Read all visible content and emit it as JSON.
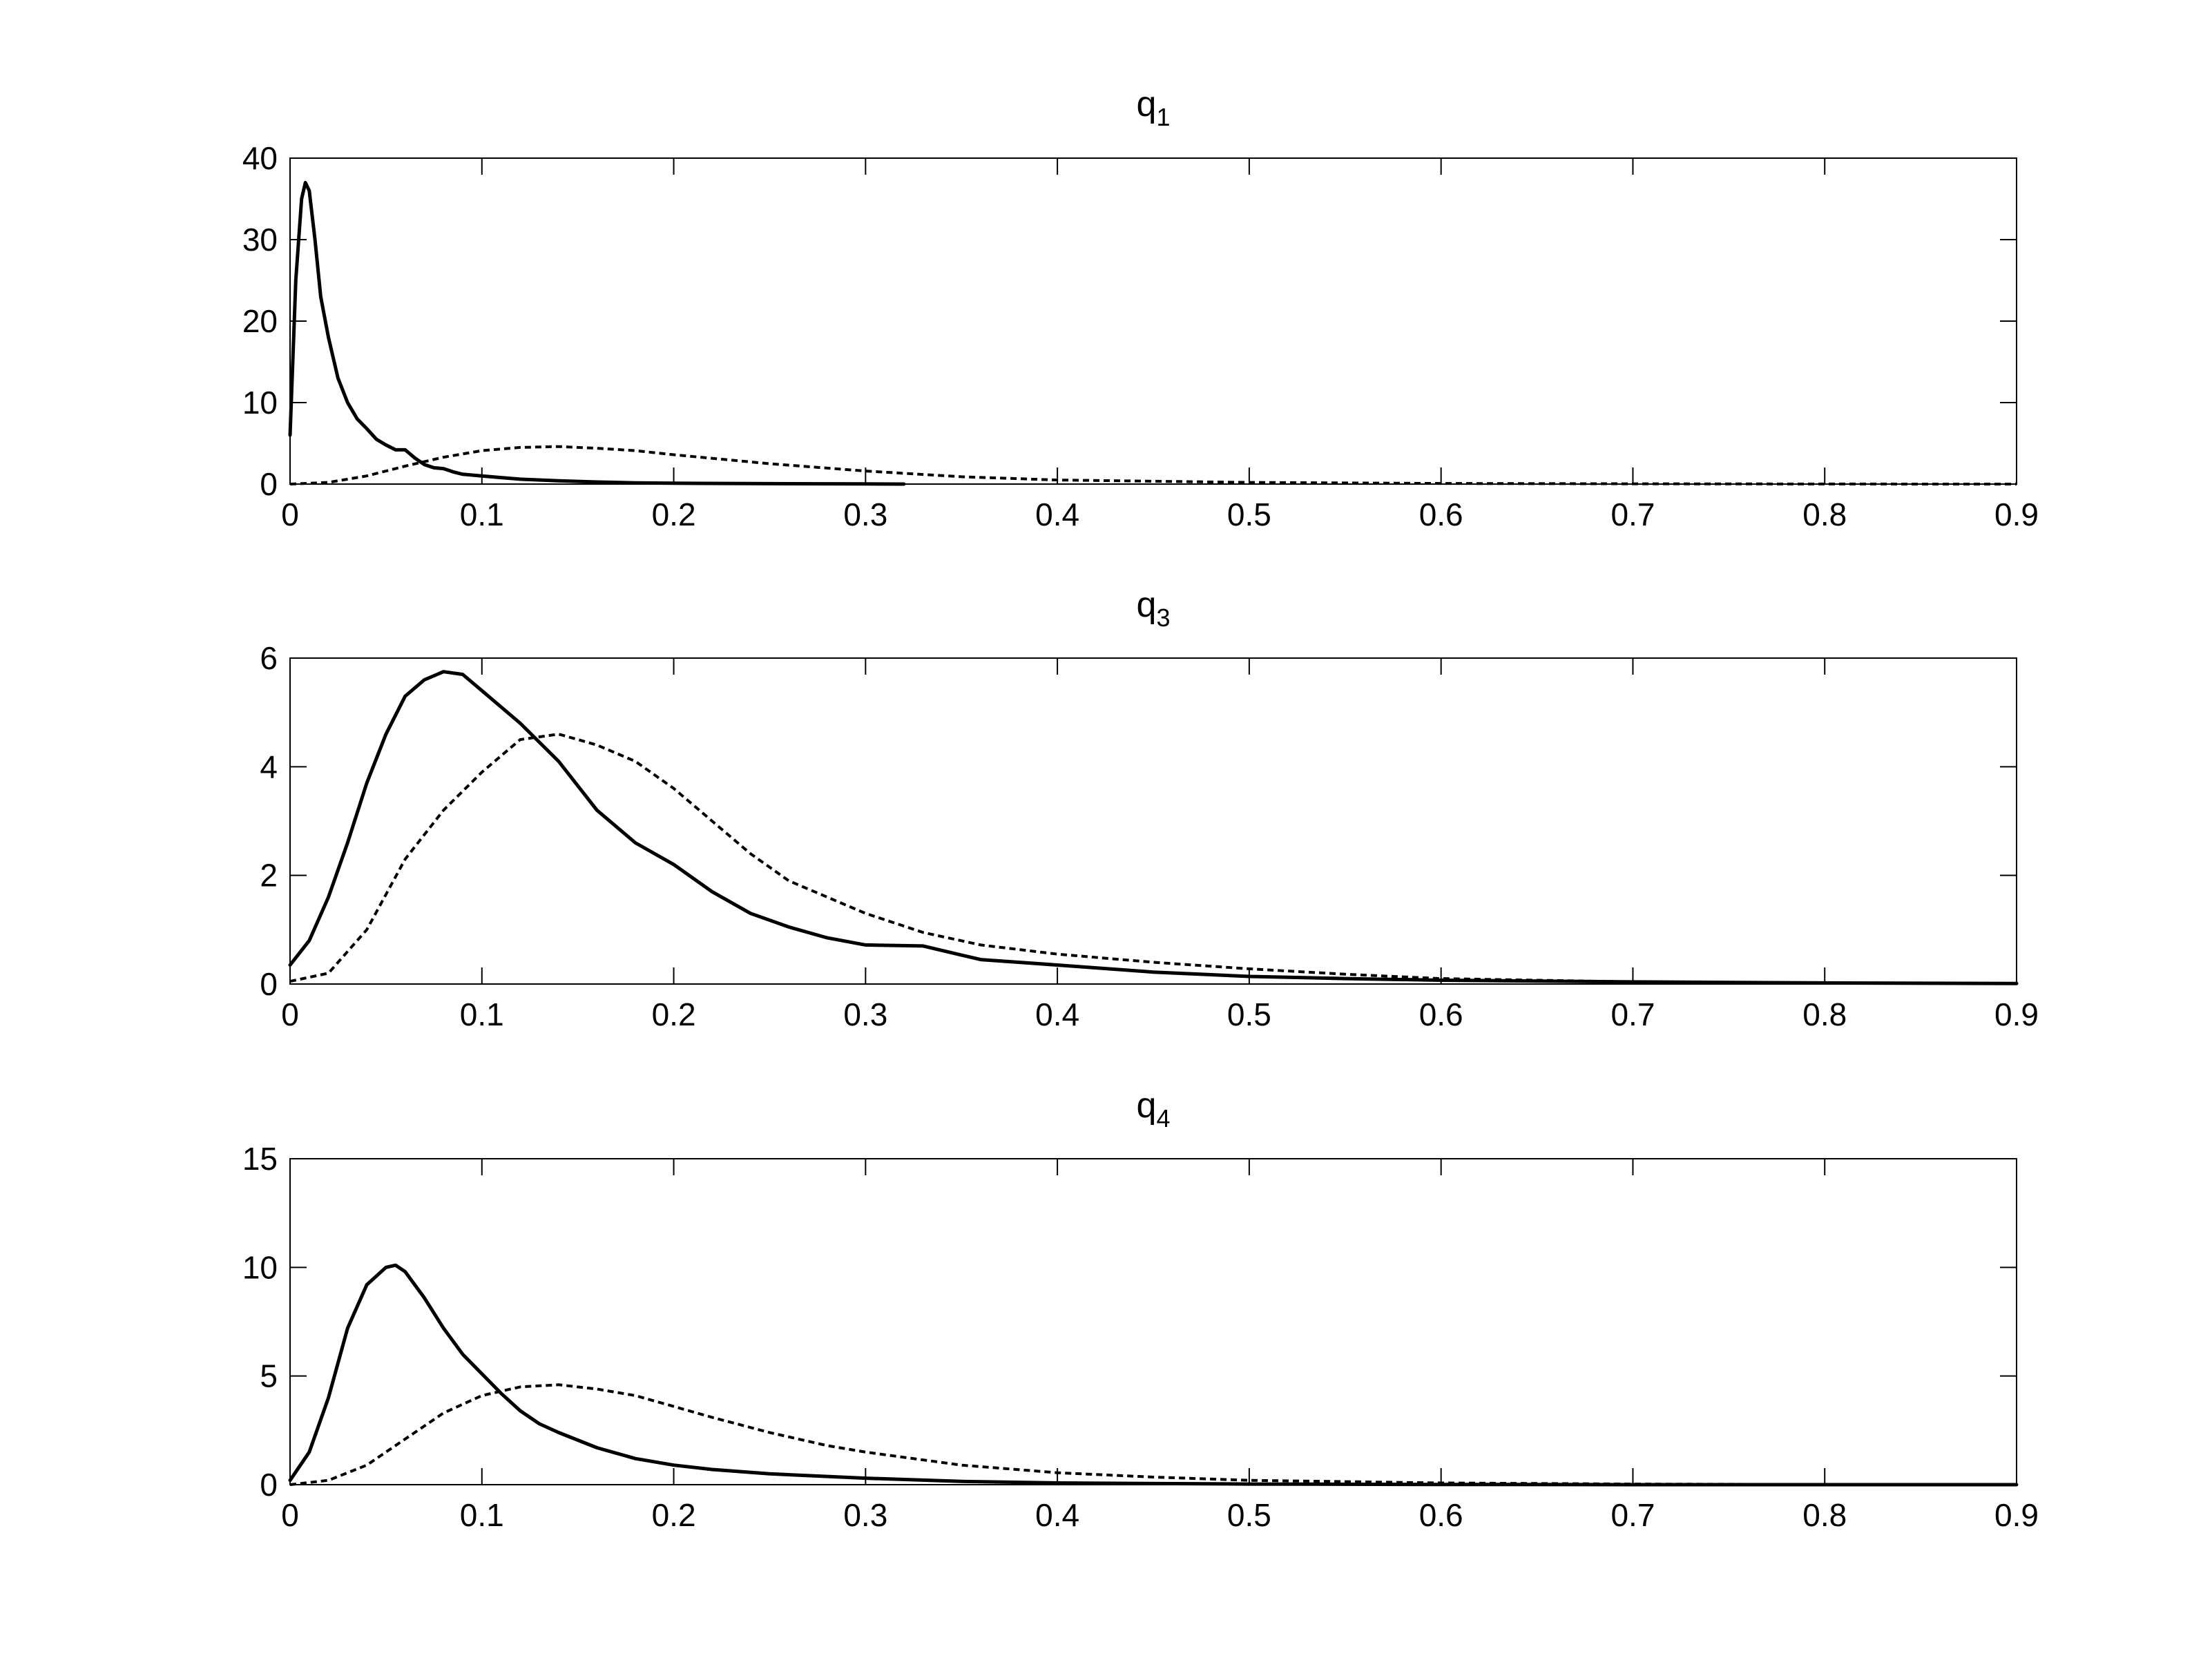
{
  "chart_data": [
    {
      "type": "line",
      "title": "q",
      "title_subscript": "1",
      "xlim": [
        0,
        0.9
      ],
      "ylim": [
        0,
        40
      ],
      "xticks": [
        0,
        0.1,
        0.2,
        0.3,
        0.4,
        0.5,
        0.6,
        0.7,
        0.8,
        0.9
      ],
      "xtick_labels": [
        "0",
        "0.1",
        "0.2",
        "0.3",
        "0.4",
        "0.5",
        "0.6",
        "0.7",
        "0.8",
        "0.9"
      ],
      "yticks": [
        0,
        10,
        20,
        30,
        40
      ],
      "ytick_labels": [
        "0",
        "10",
        "20",
        "30",
        "40"
      ],
      "grid": false,
      "series": [
        {
          "style": "solid",
          "x": [
            0,
            0.003,
            0.006,
            0.008,
            0.01,
            0.013,
            0.016,
            0.02,
            0.025,
            0.03,
            0.035,
            0.04,
            0.045,
            0.05,
            0.055,
            0.06,
            0.065,
            0.07,
            0.075,
            0.08,
            0.085,
            0.09,
            0.1,
            0.11,
            0.12,
            0.14,
            0.16,
            0.18,
            0.2,
            0.25,
            0.3,
            0.32
          ],
          "y": [
            6,
            25,
            35,
            37,
            36,
            30,
            23,
            18,
            13,
            10,
            8,
            6.8,
            5.5,
            4.8,
            4.2,
            4.2,
            3.2,
            2.4,
            2.0,
            1.9,
            1.5,
            1.2,
            1.0,
            0.8,
            0.6,
            0.4,
            0.25,
            0.15,
            0.1,
            0.05,
            0.02,
            0.0
          ]
        },
        {
          "style": "dashed",
          "x": [
            0,
            0.02,
            0.04,
            0.06,
            0.08,
            0.1,
            0.12,
            0.14,
            0.16,
            0.18,
            0.2,
            0.25,
            0.3,
            0.35,
            0.4,
            0.5,
            0.6,
            0.7,
            0.8,
            0.9
          ],
          "y": [
            0,
            0.2,
            1.0,
            2.2,
            3.3,
            4.1,
            4.5,
            4.6,
            4.4,
            4.1,
            3.6,
            2.5,
            1.6,
            0.9,
            0.5,
            0.2,
            0.08,
            0.03,
            0.01,
            0.0
          ]
        }
      ]
    },
    {
      "type": "line",
      "title": "q",
      "title_subscript": "3",
      "xlim": [
        0,
        0.9
      ],
      "ylim": [
        0,
        6
      ],
      "xticks": [
        0,
        0.1,
        0.2,
        0.3,
        0.4,
        0.5,
        0.6,
        0.7,
        0.8,
        0.9
      ],
      "xtick_labels": [
        "0",
        "0.1",
        "0.2",
        "0.3",
        "0.4",
        "0.5",
        "0.6",
        "0.7",
        "0.8",
        "0.9"
      ],
      "yticks": [
        0,
        2,
        4,
        6
      ],
      "ytick_labels": [
        "0",
        "2",
        "4",
        "6"
      ],
      "grid": false,
      "series": [
        {
          "style": "solid",
          "x": [
            0,
            0.01,
            0.02,
            0.03,
            0.04,
            0.05,
            0.06,
            0.07,
            0.08,
            0.09,
            0.1,
            0.12,
            0.14,
            0.16,
            0.18,
            0.2,
            0.22,
            0.24,
            0.26,
            0.28,
            0.3,
            0.33,
            0.36,
            0.4,
            0.45,
            0.5,
            0.55,
            0.6,
            0.7,
            0.8,
            0.9
          ],
          "y": [
            0.35,
            0.8,
            1.6,
            2.6,
            3.7,
            4.6,
            5.3,
            5.6,
            5.75,
            5.7,
            5.4,
            4.8,
            4.1,
            3.2,
            2.6,
            2.2,
            1.7,
            1.3,
            1.05,
            0.85,
            0.72,
            0.7,
            0.45,
            0.35,
            0.22,
            0.14,
            0.1,
            0.07,
            0.04,
            0.02,
            0.01
          ]
        },
        {
          "style": "dashed",
          "x": [
            0,
            0.02,
            0.04,
            0.06,
            0.08,
            0.1,
            0.12,
            0.14,
            0.16,
            0.18,
            0.2,
            0.22,
            0.24,
            0.26,
            0.28,
            0.3,
            0.33,
            0.36,
            0.4,
            0.45,
            0.5,
            0.55,
            0.6,
            0.7,
            0.8,
            0.9
          ],
          "y": [
            0.05,
            0.2,
            1.0,
            2.3,
            3.2,
            3.9,
            4.5,
            4.6,
            4.4,
            4.1,
            3.6,
            3.0,
            2.4,
            1.9,
            1.6,
            1.3,
            0.95,
            0.72,
            0.55,
            0.4,
            0.28,
            0.18,
            0.1,
            0.04,
            0.02,
            0.01
          ]
        }
      ]
    },
    {
      "type": "line",
      "title": "q",
      "title_subscript": "4",
      "xlim": [
        0,
        0.9
      ],
      "ylim": [
        0,
        15
      ],
      "xticks": [
        0,
        0.1,
        0.2,
        0.3,
        0.4,
        0.5,
        0.6,
        0.7,
        0.8,
        0.9
      ],
      "xtick_labels": [
        "0",
        "0.1",
        "0.2",
        "0.3",
        "0.4",
        "0.5",
        "0.6",
        "0.7",
        "0.8",
        "0.9"
      ],
      "yticks": [
        0,
        5,
        10,
        15
      ],
      "ytick_labels": [
        "0",
        "5",
        "10",
        "15"
      ],
      "grid": false,
      "series": [
        {
          "style": "solid",
          "x": [
            0,
            0.01,
            0.02,
            0.03,
            0.04,
            0.05,
            0.055,
            0.06,
            0.07,
            0.08,
            0.09,
            0.1,
            0.11,
            0.12,
            0.13,
            0.14,
            0.16,
            0.18,
            0.2,
            0.22,
            0.25,
            0.3,
            0.35,
            0.4,
            0.5,
            0.6,
            0.7,
            0.8,
            0.9
          ],
          "y": [
            0.2,
            1.5,
            4.0,
            7.2,
            9.2,
            10.0,
            10.1,
            9.8,
            8.6,
            7.2,
            6.0,
            5.1,
            4.2,
            3.4,
            2.8,
            2.4,
            1.7,
            1.2,
            0.9,
            0.7,
            0.5,
            0.3,
            0.15,
            0.08,
            0.03,
            0.01,
            0.0,
            0.0,
            0.0
          ]
        },
        {
          "style": "dashed",
          "x": [
            0,
            0.02,
            0.04,
            0.06,
            0.08,
            0.1,
            0.12,
            0.14,
            0.16,
            0.18,
            0.2,
            0.22,
            0.25,
            0.28,
            0.3,
            0.35,
            0.4,
            0.45,
            0.5,
            0.6,
            0.7,
            0.8,
            0.9
          ],
          "y": [
            0.0,
            0.2,
            0.9,
            2.1,
            3.3,
            4.1,
            4.5,
            4.6,
            4.4,
            4.1,
            3.6,
            3.1,
            2.4,
            1.8,
            1.5,
            0.9,
            0.55,
            0.35,
            0.2,
            0.08,
            0.03,
            0.01,
            0.0
          ]
        }
      ]
    }
  ]
}
